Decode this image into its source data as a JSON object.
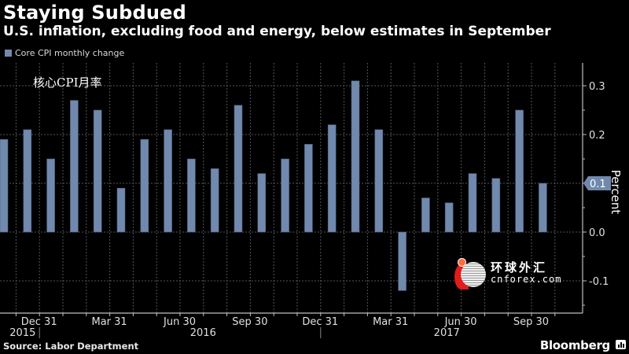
{
  "header": {
    "title": "Staying Subdued",
    "subtitle": "U.S. inflation, excluding food and energy, below estimates in September"
  },
  "annotation": "核心CPI月率",
  "source": "Source: Labor Department",
  "brand": "Bloomberg",
  "watermark": {
    "cn": "环球外汇",
    "en": "cnforex.com"
  },
  "colors": {
    "bar": "#7189ad",
    "background": "#000000",
    "grid": "#555555",
    "axis": "#bfbfbf"
  },
  "chart_data": {
    "type": "bar",
    "title": "Staying Subdued",
    "subtitle": "U.S. inflation, excluding food and energy, below estimates in September",
    "legend": [
      {
        "name": "Core CPI monthly change",
        "position": "top-left"
      }
    ],
    "xlabel": "",
    "ylabel": "Percent",
    "ylim": [
      -0.15,
      0.33
    ],
    "yticks": [
      0.3,
      0.2,
      0.1,
      0.0,
      -0.1
    ],
    "ytick_labels": [
      "0.3",
      "0.2",
      "0.1",
      "0.0",
      "-0.1"
    ],
    "grid": true,
    "last_value_label": "0.1",
    "categories": [
      "Oct 2015",
      "Nov 2015",
      "Dec 2015",
      "Jan 2016",
      "Feb 2016",
      "Mar 2016",
      "Apr 2016",
      "May 2016",
      "Jun 2016",
      "Jul 2016",
      "Aug 2016",
      "Sep 2016",
      "Oct 2016",
      "Nov 2016",
      "Dec 2016",
      "Jan 2017",
      "Feb 2017",
      "Mar 2017",
      "Apr 2017",
      "May 2017",
      "Jun 2017",
      "Jul 2017",
      "Aug 2017",
      "Sep 2017"
    ],
    "series": [
      {
        "name": "Core CPI monthly change",
        "values": [
          0.19,
          0.21,
          0.15,
          0.27,
          0.25,
          0.09,
          0.19,
          0.21,
          0.15,
          0.13,
          0.26,
          0.12,
          0.15,
          0.18,
          0.22,
          0.31,
          0.21,
          -0.12,
          0.07,
          0.06,
          0.12,
          0.11,
          0.25,
          0.1
        ]
      }
    ],
    "xtick_labels": [
      {
        "label": "Dec 31",
        "after_index": 1
      },
      {
        "label": "Mar 31",
        "after_index": 4
      },
      {
        "label": "Jun 30",
        "after_index": 7
      },
      {
        "label": "Sep 30",
        "after_index": 10
      },
      {
        "label": "Dec 31",
        "after_index": 13
      },
      {
        "label": "Mar 31",
        "after_index": 16
      },
      {
        "label": "Jun 30",
        "after_index": 19
      },
      {
        "label": "Sep 30",
        "after_index": 22
      }
    ],
    "year_labels": [
      {
        "label": "2015",
        "at_index": 0.8
      },
      {
        "label": "2016",
        "at_index": 8.5
      },
      {
        "label": "2017",
        "at_index": 18.9
      }
    ]
  }
}
